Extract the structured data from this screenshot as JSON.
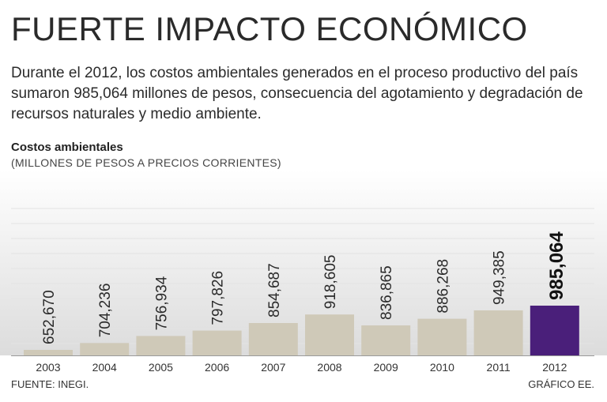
{
  "header": {
    "title": "FUERTE IMPACTO ECONÓMICO",
    "intro": "Durante el 2012, los costos ambientales generados en el proceso productivo del país sumaron 985,064 millones de pesos, consecuencia del agotamiento y degradación de recursos naturales y medio ambiente."
  },
  "chart_data": {
    "type": "bar",
    "title": "Costos ambientales",
    "subtitle": "(MILLONES DE PESOS A PRECIOS CORRIENTES)",
    "categories": [
      "2003",
      "2004",
      "2005",
      "2006",
      "2007",
      "2008",
      "2009",
      "2010",
      "2011",
      "2012"
    ],
    "values": [
      652670,
      704236,
      756934,
      797826,
      854687,
      918605,
      836865,
      886268,
      949385,
      985064
    ],
    "value_labels": [
      "652,670",
      "704,236",
      "756,934",
      "797,826",
      "854,687",
      "918,605",
      "836,865",
      "886,268",
      "949,385",
      "985,064"
    ],
    "highlight_index": 9,
    "colors": {
      "bar": "#cfc9b8",
      "highlight": "#4a1f7a",
      "axis": "#9a9a9a",
      "grid": "#e3e3e3"
    },
    "xlabel": "",
    "ylabel": "",
    "ylim": [
      600000,
      985064
    ]
  },
  "footer": {
    "source": "FUENTE: INEGI.",
    "credit": "GRÁFICO EE."
  }
}
